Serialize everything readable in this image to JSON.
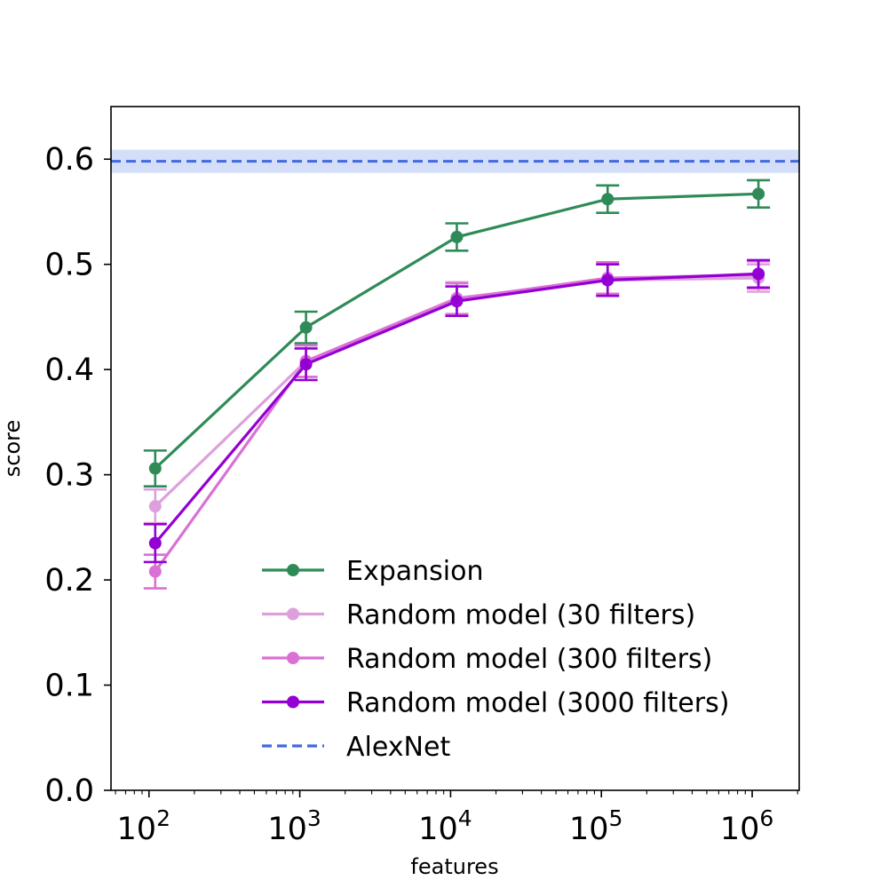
{
  "chart_data": {
    "type": "line",
    "title": "",
    "xlabel": "features",
    "ylabel": "score",
    "xscale": "log",
    "xlim": [
      56,
      2050000
    ],
    "ylim": [
      0,
      0.65
    ],
    "x_ticks": [
      100,
      1000,
      10000,
      100000,
      1000000
    ],
    "x_tick_labels": [
      {
        "base": "10",
        "exp": "2"
      },
      {
        "base": "10",
        "exp": "3"
      },
      {
        "base": "10",
        "exp": "4"
      },
      {
        "base": "10",
        "exp": "5"
      },
      {
        "base": "10",
        "exp": "6"
      }
    ],
    "y_ticks": [
      0.0,
      0.1,
      0.2,
      0.3,
      0.4,
      0.5,
      0.6
    ],
    "y_tick_labels": [
      "0.0",
      "0.1",
      "0.2",
      "0.3",
      "0.4",
      "0.5",
      "0.6"
    ],
    "grid": false,
    "legend_position": "lower-right",
    "x": [
      110,
      1100,
      11000,
      110000,
      1100000
    ],
    "series": [
      {
        "name": "Expansion",
        "color": "#2e8b57",
        "values": [
          0.306,
          0.44,
          0.526,
          0.562,
          0.567
        ],
        "err": [
          0.017,
          0.015,
          0.013,
          0.013,
          0.013
        ]
      },
      {
        "name": "Random model (30 filters)",
        "color": "#dda0dd",
        "values": [
          0.27,
          0.408,
          0.468,
          0.485,
          0.487
        ],
        "err": [
          0.016,
          0.015,
          0.015,
          0.015,
          0.013
        ]
      },
      {
        "name": "Random model (300 filters)",
        "color": "#da70d6",
        "values": [
          0.208,
          0.408,
          0.467,
          0.487,
          0.49
        ],
        "err": [
          0.016,
          0.015,
          0.015,
          0.015,
          0.013
        ]
      },
      {
        "name": "Random model (3000 filters)",
        "color": "#9400d3",
        "values": [
          0.235,
          0.405,
          0.465,
          0.485,
          0.491
        ],
        "err": [
          0.018,
          0.015,
          0.014,
          0.015,
          0.013
        ]
      }
    ],
    "reference": {
      "name": "AlexNet",
      "color": "#4169e1",
      "value": 0.598,
      "band": [
        0.587,
        0.609
      ]
    }
  }
}
